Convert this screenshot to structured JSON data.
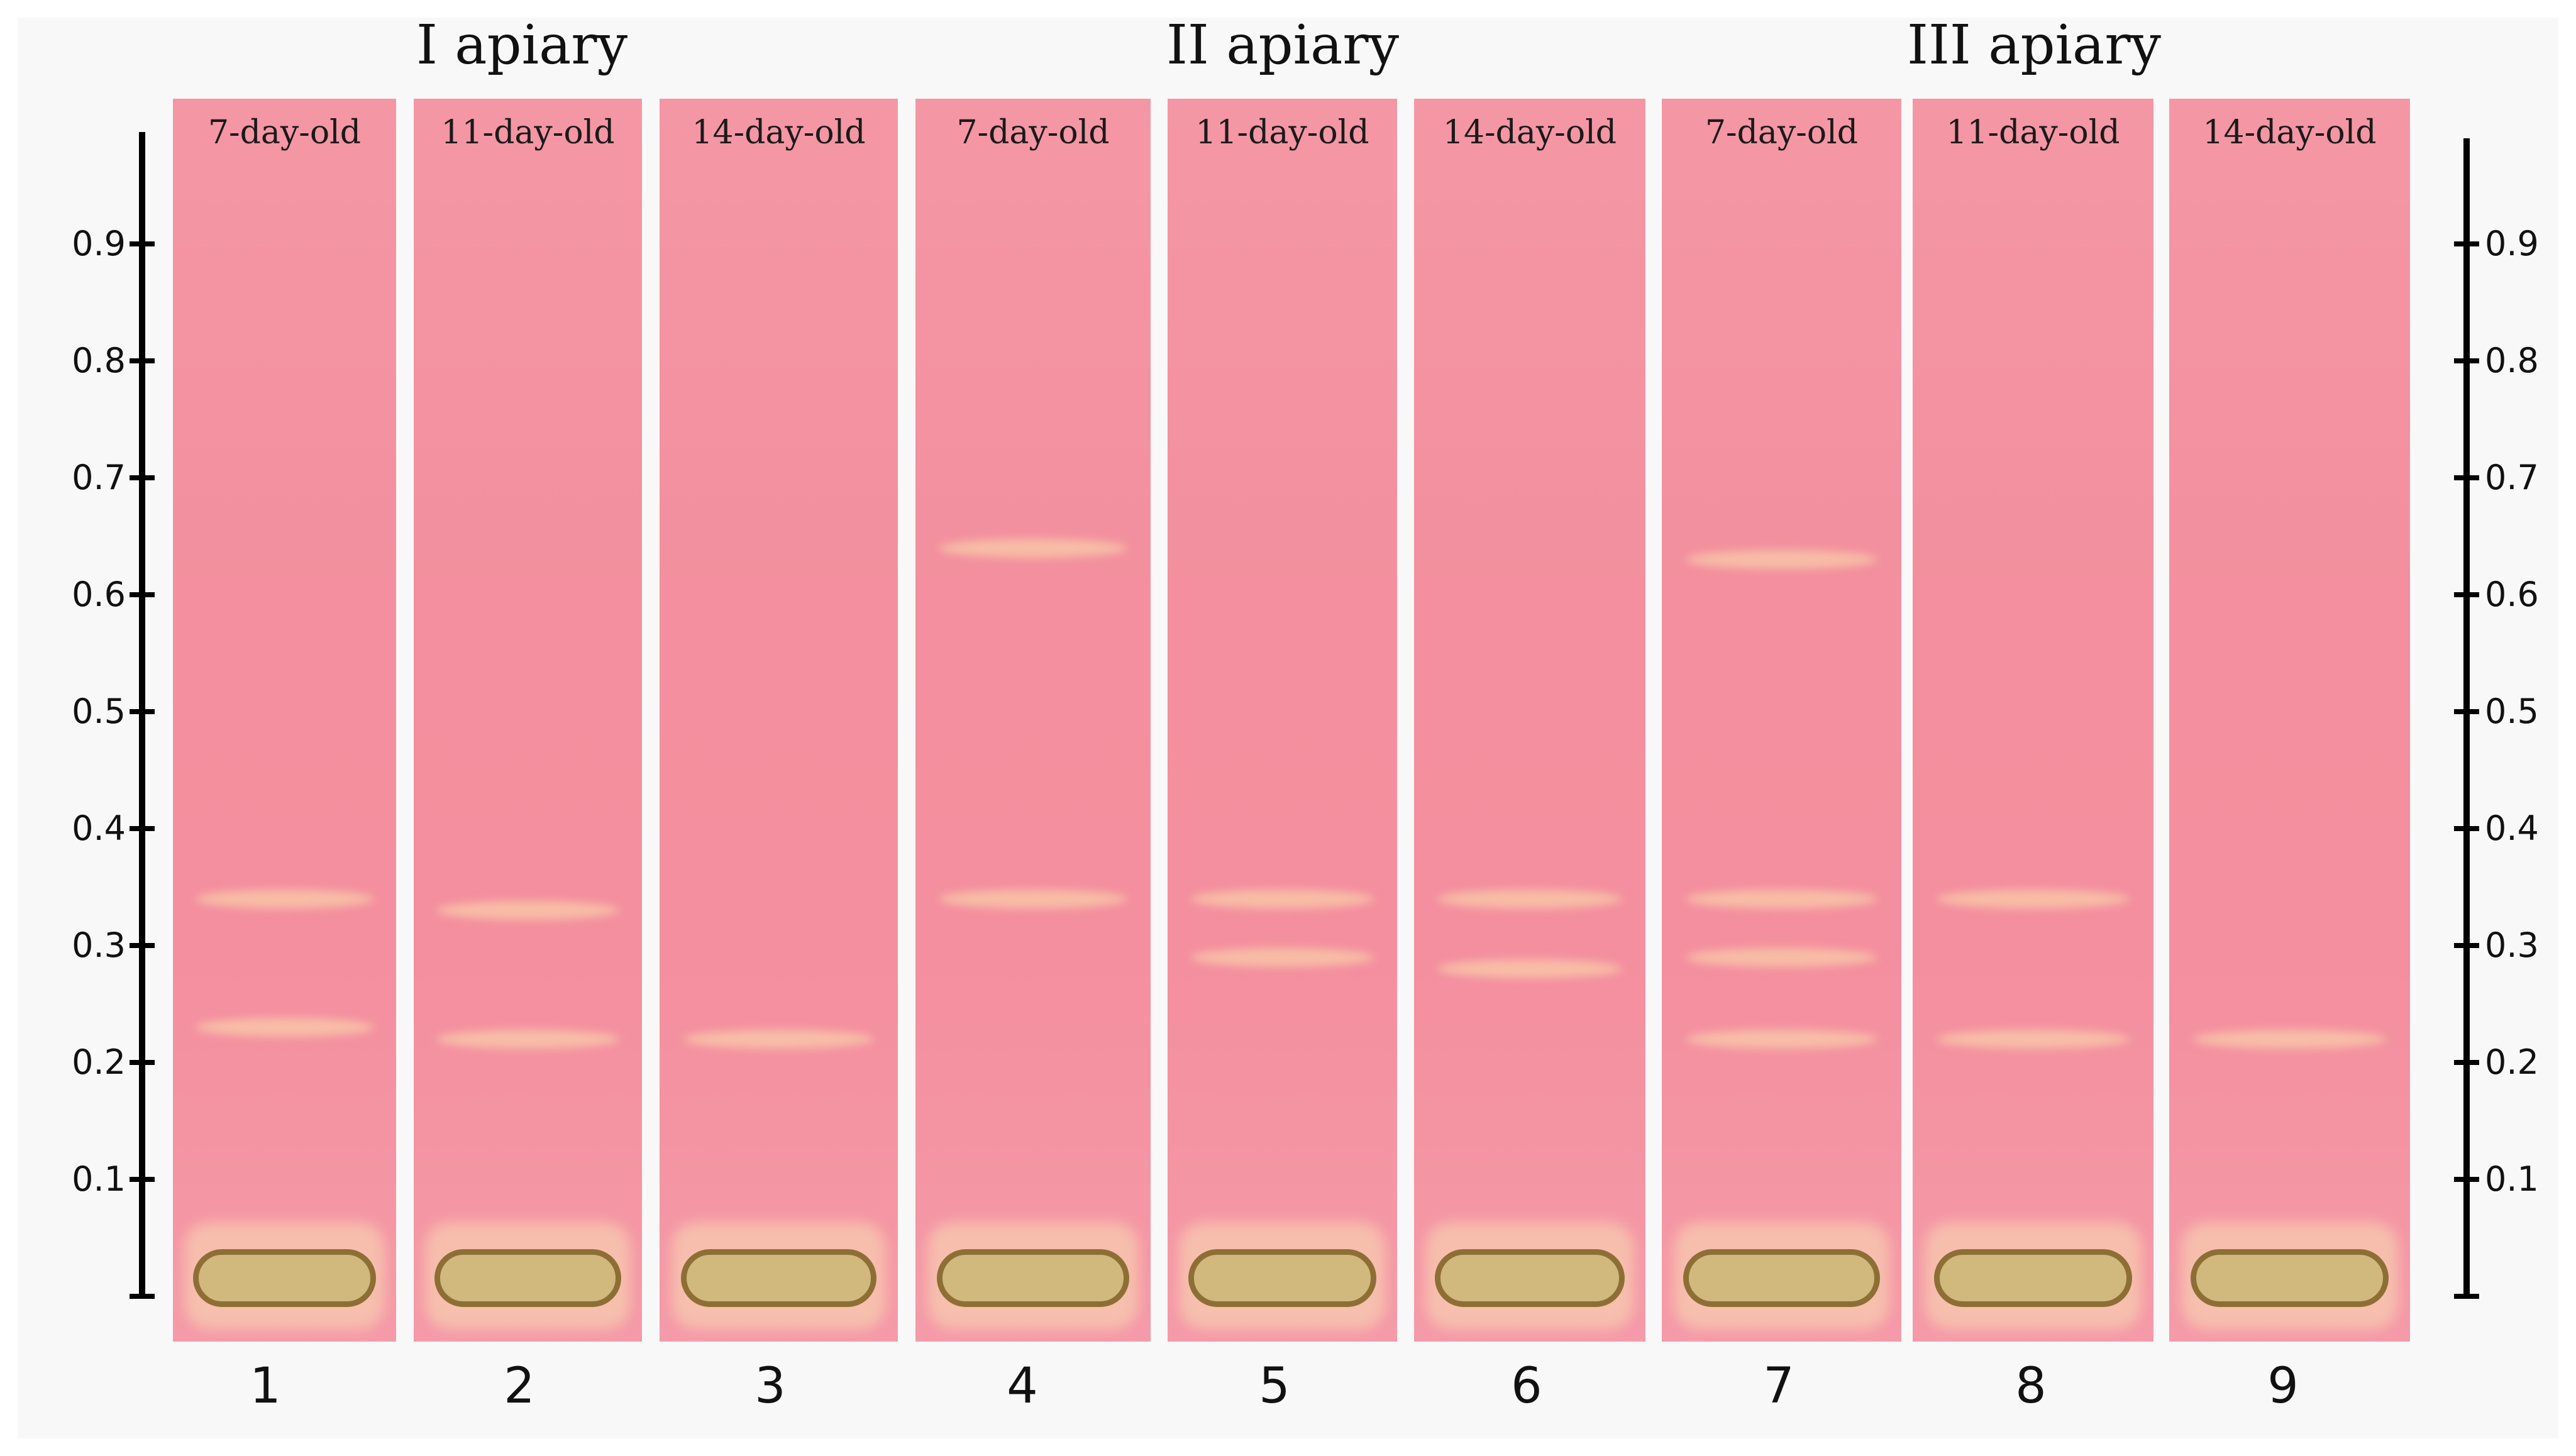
{
  "figure": {
    "apiaries": [
      {
        "title": "I apiary"
      },
      {
        "title": "II apiary"
      },
      {
        "title": "III apiary"
      }
    ],
    "lanes": [
      {
        "number": "1",
        "label": "7-day-old",
        "bands": [
          0.34,
          0.23
        ]
      },
      {
        "number": "2",
        "label": "11-day-old",
        "bands": [
          0.33,
          0.22
        ]
      },
      {
        "number": "3",
        "label": "14-day-old",
        "bands": [
          0.22
        ]
      },
      {
        "number": "4",
        "label": "7-day-old",
        "bands": [
          0.64,
          0.34
        ]
      },
      {
        "number": "5",
        "label": "11-day-old",
        "bands": [
          0.34,
          0.29
        ]
      },
      {
        "number": "6",
        "label": "14-day-old",
        "bands": [
          0.34,
          0.28
        ]
      },
      {
        "number": "7",
        "label": "7-day-old",
        "bands": [
          0.63,
          0.34,
          0.29,
          0.22
        ]
      },
      {
        "number": "8",
        "label": "11-day-old",
        "bands": [
          0.34,
          0.22
        ]
      },
      {
        "number": "9",
        "label": "14-day-old",
        "bands": [
          0.22
        ]
      }
    ],
    "rf_scale_left": [
      "0.9",
      "0.8",
      "0.7",
      "0.6",
      "0.5",
      "0.4",
      "0.3",
      "0.2",
      "0.1"
    ],
    "rf_scale_right": [
      "0.9",
      "0.8",
      "0.7",
      "0.6",
      "0.5",
      "0.4",
      "0.3",
      "0.2",
      "0.1"
    ]
  }
}
